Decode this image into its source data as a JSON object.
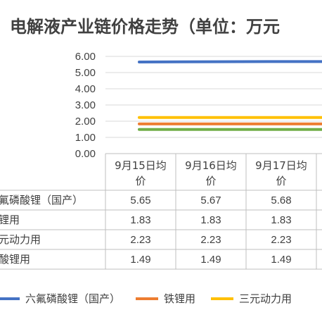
{
  "chart_data": {
    "type": "line",
    "title": "电解液产业链价格走势（单位：万元",
    "categories": [
      "9月15日均价",
      "9月16日均价",
      "9月17日均价"
    ],
    "category_lines": [
      [
        "9月15日均",
        "价"
      ],
      [
        "9月16日均",
        "价"
      ],
      [
        "9月17日均",
        "价"
      ]
    ],
    "yticks": [
      "6.00",
      "5.00",
      "4.00",
      "3.00",
      "2.00",
      "1.00",
      "0.00"
    ],
    "ylim": [
      0,
      6
    ],
    "grid": true,
    "legend_position": "bottom",
    "series": [
      {
        "name": "六氟磷酸锂（国产）",
        "row_label": "氟磷酸锂（国产）",
        "legend_label": "六氟磷酸锂（国产）",
        "color": "#4472C4",
        "values": [
          5.65,
          5.67,
          5.68
        ],
        "value_labels": [
          "5.65",
          "5.67",
          "5.68"
        ]
      },
      {
        "name": "铁锂用",
        "row_label": "锂用",
        "legend_label": "铁锂用",
        "color": "#ED7D31",
        "values": [
          1.83,
          1.83,
          1.83
        ],
        "value_labels": [
          "1.83",
          "1.83",
          "1.83"
        ]
      },
      {
        "name": "三元动力用",
        "row_label": "元动力用",
        "legend_label": "三元动力用",
        "color": "#FFC000",
        "values": [
          2.23,
          2.23,
          2.23
        ],
        "value_labels": [
          "2.23",
          "2.23",
          "2.23"
        ]
      },
      {
        "name": "酸锂用",
        "row_label": "酸锂用",
        "legend_label": "",
        "color": "#70AD47",
        "values": [
          1.49,
          1.49,
          1.49
        ],
        "value_labels": [
          "1.49",
          "1.49",
          "1.49"
        ]
      }
    ]
  }
}
